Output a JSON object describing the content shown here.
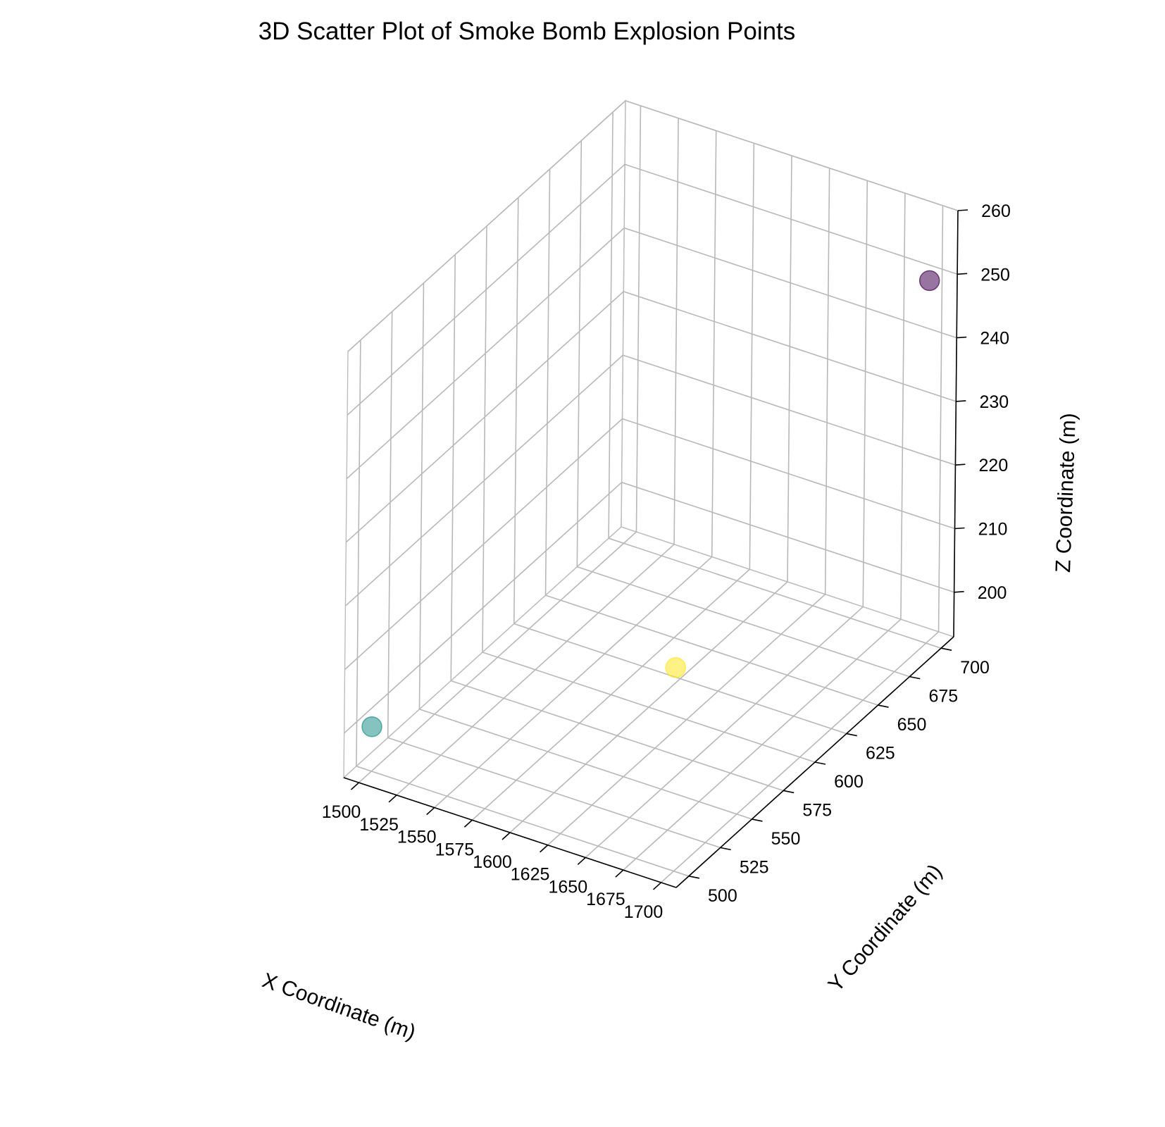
{
  "chart_data": {
    "type": "scatter",
    "projection": "3d",
    "title": "3D Scatter Plot of Smoke Bomb Explosion Points",
    "xlabel": "X Coordinate (m)",
    "ylabel": "Y Coordinate (m)",
    "zlabel": "Z Coordinate (m)",
    "xlim": [
      1490,
      1710
    ],
    "ylim": [
      490,
      710
    ],
    "zlim": [
      193,
      260
    ],
    "x_ticks": [
      1500,
      1525,
      1550,
      1575,
      1600,
      1625,
      1650,
      1675,
      1700
    ],
    "y_ticks": [
      500,
      525,
      550,
      575,
      600,
      625,
      650,
      675,
      700
    ],
    "z_ticks": [
      200,
      210,
      220,
      230,
      240,
      250,
      260
    ],
    "grid": true,
    "colormap": "viridis",
    "points": [
      {
        "x": 1700,
        "y": 700,
        "z": 250,
        "color": "#440154"
      },
      {
        "x": 1500,
        "y": 500,
        "z": 200,
        "color": "#21918c"
      },
      {
        "x": 1700,
        "y": 500,
        "z": 225,
        "color": "#fde725"
      }
    ]
  }
}
